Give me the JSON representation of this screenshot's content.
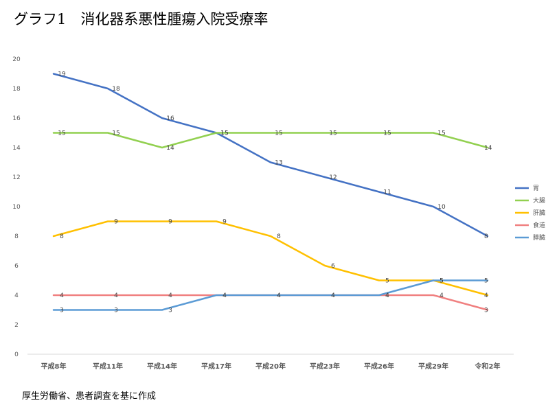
{
  "chart_data": {
    "type": "line",
    "title": "グラフ1　消化器系悪性腫瘍入院受療率",
    "source": "厚生労働省、患者調査を基に作成",
    "categories": [
      "平成8年",
      "平成11年",
      "平成14年",
      "平成17年",
      "平成20年",
      "平成23年",
      "平成26年",
      "平成29年",
      "令和2年"
    ],
    "ylim": [
      0,
      20
    ],
    "yticks": [
      0,
      2,
      4,
      6,
      8,
      10,
      12,
      14,
      16,
      18,
      20
    ],
    "grid": false,
    "legend_position": "right",
    "series": [
      {
        "name": "胃",
        "color": "#4472C4",
        "values": [
          19,
          18,
          16,
          15,
          13,
          12,
          11,
          10,
          8
        ]
      },
      {
        "name": "大腸",
        "color": "#92D050",
        "values": [
          15,
          15,
          14,
          15,
          15,
          15,
          15,
          15,
          14
        ]
      },
      {
        "name": "肝臓",
        "color": "#FFC000",
        "values": [
          8,
          9,
          9,
          9,
          8,
          6,
          5,
          5,
          4
        ]
      },
      {
        "name": "食道",
        "color": "#F08080",
        "values": [
          4,
          4,
          4,
          4,
          4,
          4,
          4,
          4,
          3
        ]
      },
      {
        "name": "膵臓",
        "color": "#5B9BD5",
        "values": [
          3,
          3,
          3,
          4,
          4,
          4,
          4,
          5,
          5
        ]
      }
    ]
  }
}
